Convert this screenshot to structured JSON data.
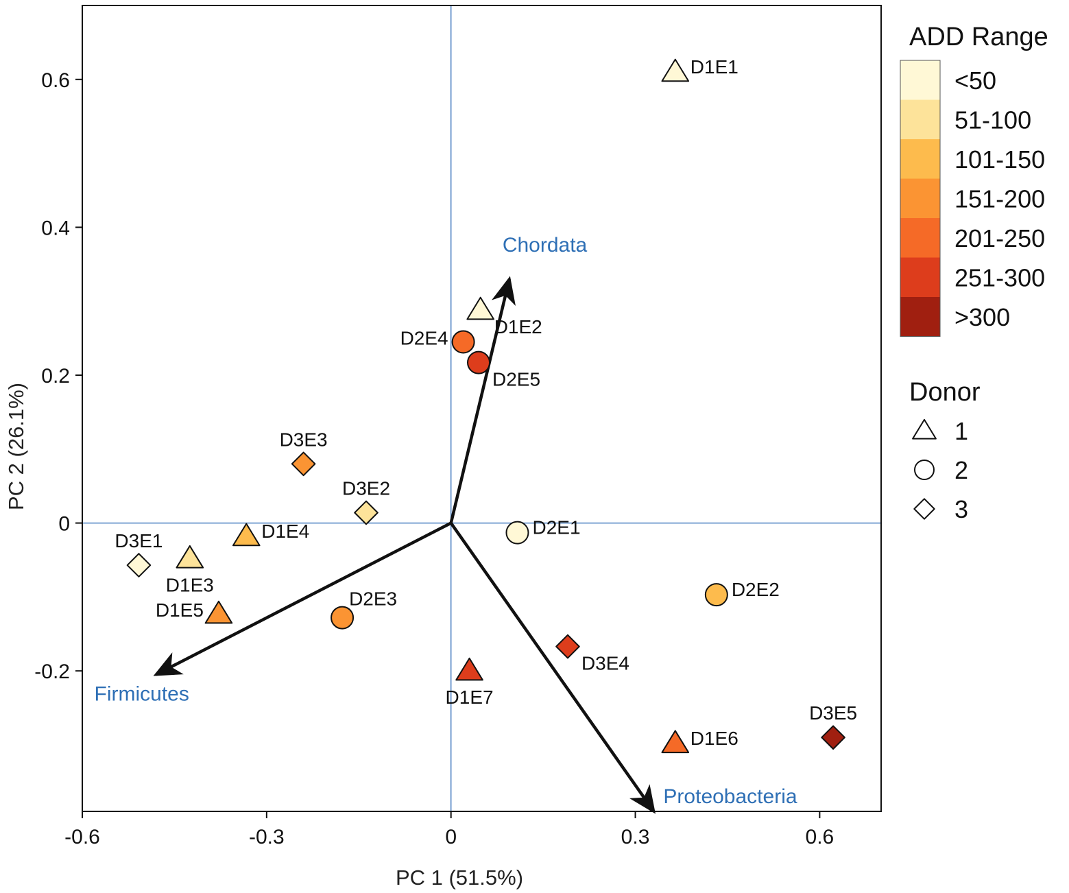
{
  "chart_data": {
    "type": "scatter",
    "subtype": "pca-biplot",
    "title": "",
    "xlabel": "PC 1 (51.5%)",
    "ylabel": "PC 2 (26.1%)",
    "xlim": [
      -0.6,
      0.7
    ],
    "ylim": [
      -0.39,
      0.7
    ],
    "xticks": [
      -0.6,
      -0.3,
      0,
      0.3,
      0.6
    ],
    "xtick_labels": [
      "-0.6",
      "-0.3",
      "0",
      "0.3",
      "0.6"
    ],
    "yticks": [
      -0.2,
      0,
      0.2,
      0.4,
      0.6
    ],
    "ytick_labels": [
      "-0.2",
      "0",
      "0.2",
      "0.4",
      "0.6"
    ],
    "reference_lines": {
      "x": 0,
      "y": 0,
      "color": "#4a7fc1"
    },
    "add_ranges": [
      {
        "label": "<50",
        "color": "#fff8d6"
      },
      {
        "label": "51-100",
        "color": "#fde39a"
      },
      {
        "label": "101-150",
        "color": "#fdbb4d"
      },
      {
        "label": "151-200",
        "color": "#fb9433"
      },
      {
        "label": "201-250",
        "color": "#f56a27"
      },
      {
        "label": "251-300",
        "color": "#dd3d1c"
      },
      {
        "label": ">300",
        "color": "#a01f10"
      }
    ],
    "points": [
      {
        "label": "D1E1",
        "x": 0.365,
        "y": 0.61,
        "donor": 1,
        "add": 0,
        "label_pos": "right"
      },
      {
        "label": "D1E2",
        "x": 0.048,
        "y": 0.288,
        "donor": 1,
        "add": 0,
        "label_pos": "below-right"
      },
      {
        "label": "D2E4",
        "x": 0.02,
        "y": 0.245,
        "donor": 2,
        "add": 4,
        "label_pos": "left"
      },
      {
        "label": "D2E5",
        "x": 0.045,
        "y": 0.217,
        "donor": 2,
        "add": 5,
        "label_pos": "below-right"
      },
      {
        "label": "D3E3",
        "x": -0.24,
        "y": 0.08,
        "donor": 3,
        "add": 3,
        "label_pos": "above"
      },
      {
        "label": "D3E2",
        "x": -0.138,
        "y": 0.014,
        "donor": 3,
        "add": 1,
        "label_pos": "above"
      },
      {
        "label": "D1E4",
        "x": -0.333,
        "y": -0.018,
        "donor": 1,
        "add": 2,
        "label_pos": "right"
      },
      {
        "label": "D3E1",
        "x": -0.508,
        "y": -0.057,
        "donor": 3,
        "add": 0,
        "label_pos": "above"
      },
      {
        "label": "D1E3",
        "x": -0.425,
        "y": -0.048,
        "donor": 1,
        "add": 1,
        "label_pos": "below"
      },
      {
        "label": "D1E5",
        "x": -0.378,
        "y": -0.123,
        "donor": 1,
        "add": 3,
        "label_pos": "left"
      },
      {
        "label": "D2E3",
        "x": -0.177,
        "y": -0.128,
        "donor": 2,
        "add": 3,
        "label_pos": "above-right"
      },
      {
        "label": "D2E1",
        "x": 0.108,
        "y": -0.013,
        "donor": 2,
        "add": 0,
        "label_pos": "right"
      },
      {
        "label": "D2E2",
        "x": 0.432,
        "y": -0.097,
        "donor": 2,
        "add": 2,
        "label_pos": "right"
      },
      {
        "label": "D3E4",
        "x": 0.19,
        "y": -0.167,
        "donor": 3,
        "add": 5,
        "label_pos": "below-right"
      },
      {
        "label": "D1E7",
        "x": 0.03,
        "y": -0.2,
        "donor": 1,
        "add": 5,
        "label_pos": "below"
      },
      {
        "label": "D1E6",
        "x": 0.365,
        "y": -0.298,
        "donor": 1,
        "add": 4,
        "label_pos": "right"
      },
      {
        "label": "D3E5",
        "x": 0.622,
        "y": -0.29,
        "donor": 3,
        "add": 6,
        "label_pos": "above"
      }
    ],
    "vectors": [
      {
        "label": "Chordata",
        "x": 0.095,
        "y": 0.33,
        "label_pos": "top-right",
        "color": "#2e6fb5"
      },
      {
        "label": "Firmicutes",
        "x": -0.48,
        "y": -0.205,
        "label_pos": "below",
        "color": "#2e6fb5"
      },
      {
        "label": "Proteobacteria",
        "x": 0.33,
        "y": -0.39,
        "label_pos": "right",
        "color": "#2e6fb5"
      }
    ],
    "legend_add": {
      "title": "ADD Range",
      "placement": "top-right"
    },
    "legend_donor": {
      "title": "Donor",
      "placement": "right",
      "entries": [
        {
          "label": "1",
          "shape": "triangle"
        },
        {
          "label": "2",
          "shape": "circle"
        },
        {
          "label": "3",
          "shape": "diamond"
        }
      ]
    }
  }
}
